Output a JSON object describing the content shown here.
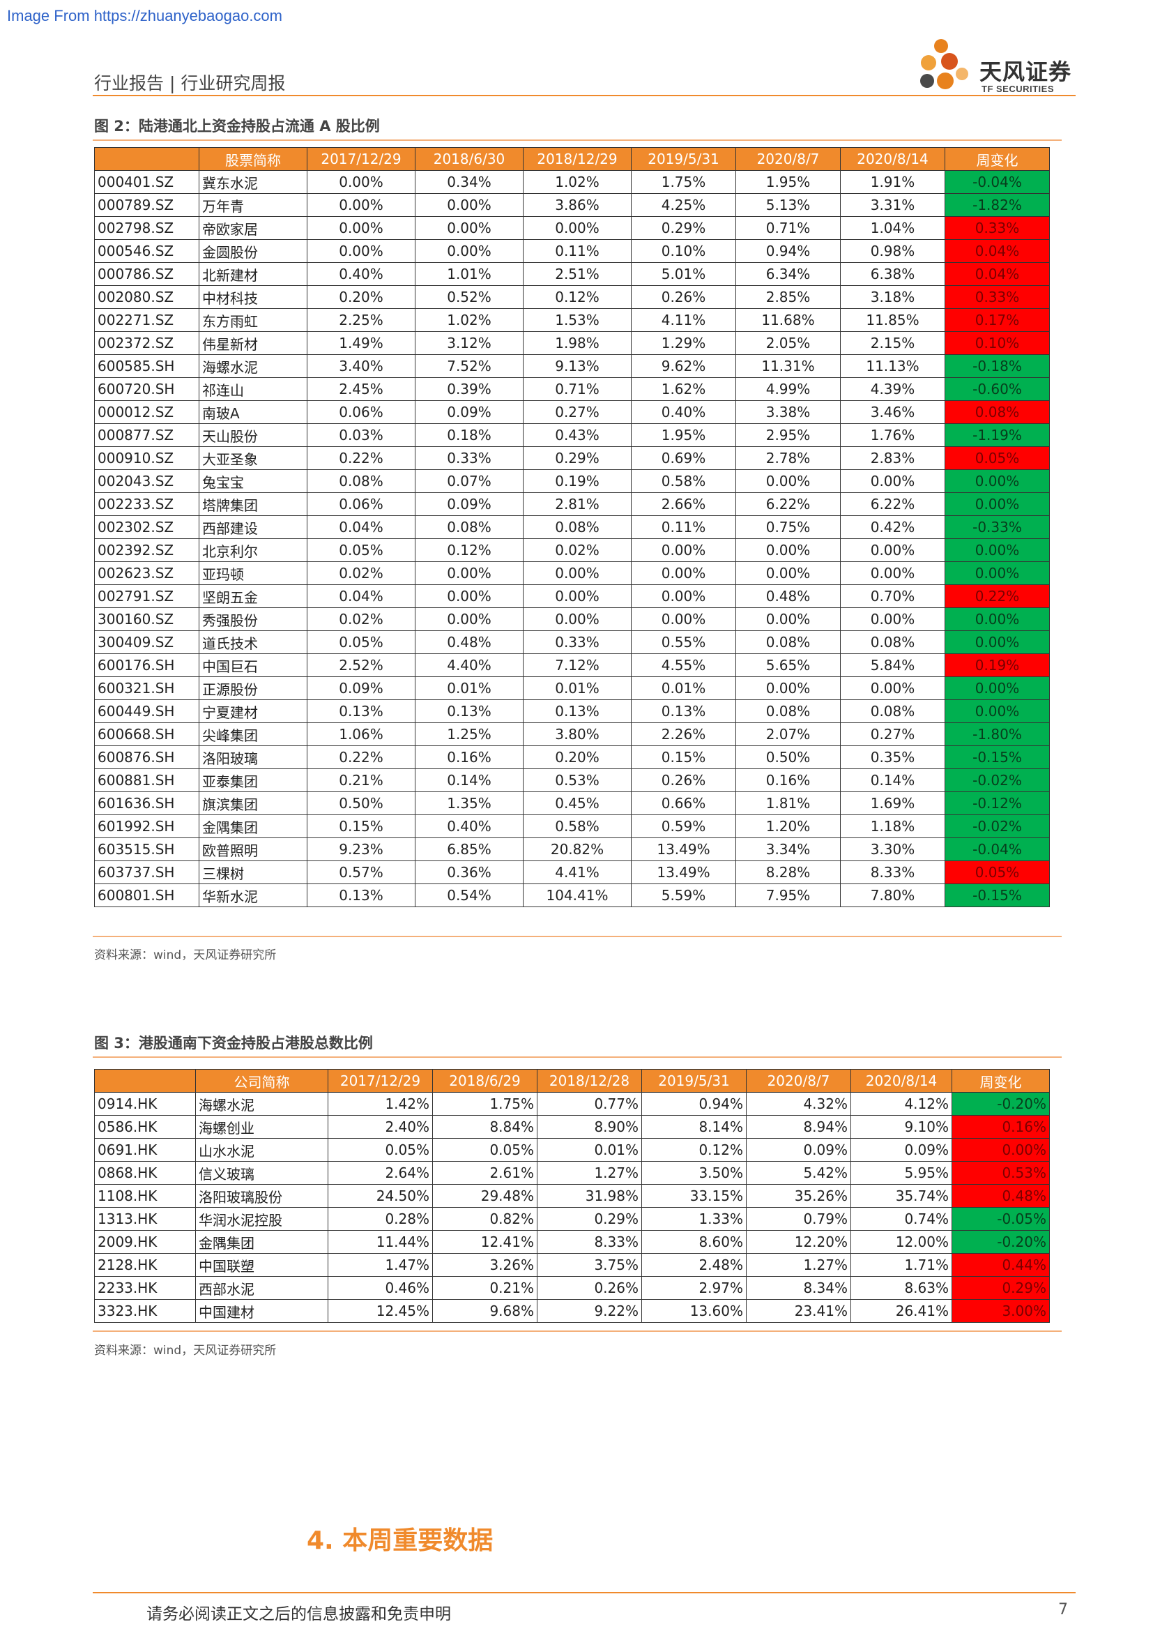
{
  "watermark": "Image From https://zhuanyebaogao.com",
  "header": {
    "title": "行业报告 | 行业研究周报"
  },
  "logo": {
    "name": "天风证券",
    "sub": "TF SECURITIES"
  },
  "colors": {
    "accent": "#f08a2c",
    "increase": "#ff0000",
    "decrease": "#00b050"
  },
  "figure2": {
    "title": "图 2：陆港通北上资金持股占流通 A 股比例",
    "columns": [
      "",
      "股票简称",
      "2017/12/29",
      "2018/6/30",
      "2018/12/29",
      "2019/5/31",
      "2020/8/7",
      "2020/8/14",
      "周变化"
    ],
    "rows": [
      [
        "000401.SZ",
        "冀东水泥",
        "0.00%",
        "0.34%",
        "1.02%",
        "1.75%",
        "1.95%",
        "1.91%",
        "-0.04%"
      ],
      [
        "000789.SZ",
        "万年青",
        "0.00%",
        "0.00%",
        "3.86%",
        "4.25%",
        "5.13%",
        "3.31%",
        "-1.82%"
      ],
      [
        "002798.SZ",
        "帝欧家居",
        "0.00%",
        "0.00%",
        "0.00%",
        "0.29%",
        "0.71%",
        "1.04%",
        "0.33%"
      ],
      [
        "000546.SZ",
        "金圆股份",
        "0.00%",
        "0.00%",
        "0.11%",
        "0.10%",
        "0.94%",
        "0.98%",
        "0.04%"
      ],
      [
        "000786.SZ",
        "北新建材",
        "0.40%",
        "1.01%",
        "2.51%",
        "5.01%",
        "6.34%",
        "6.38%",
        "0.04%"
      ],
      [
        "002080.SZ",
        "中材科技",
        "0.20%",
        "0.52%",
        "0.12%",
        "0.26%",
        "2.85%",
        "3.18%",
        "0.33%"
      ],
      [
        "002271.SZ",
        "东方雨虹",
        "2.25%",
        "1.02%",
        "1.53%",
        "4.11%",
        "11.68%",
        "11.85%",
        "0.17%"
      ],
      [
        "002372.SZ",
        "伟星新材",
        "1.49%",
        "3.12%",
        "1.98%",
        "1.29%",
        "2.05%",
        "2.15%",
        "0.10%"
      ],
      [
        "600585.SH",
        "海螺水泥",
        "3.40%",
        "7.52%",
        "9.13%",
        "9.62%",
        "11.31%",
        "11.13%",
        "-0.18%"
      ],
      [
        "600720.SH",
        "祁连山",
        "2.45%",
        "0.39%",
        "0.71%",
        "1.62%",
        "4.99%",
        "4.39%",
        "-0.60%"
      ],
      [
        "000012.SZ",
        "南玻A",
        "0.06%",
        "0.09%",
        "0.27%",
        "0.40%",
        "3.38%",
        "3.46%",
        "0.08%"
      ],
      [
        "000877.SZ",
        "天山股份",
        "0.03%",
        "0.18%",
        "0.43%",
        "1.95%",
        "2.95%",
        "1.76%",
        "-1.19%"
      ],
      [
        "000910.SZ",
        "大亚圣象",
        "0.22%",
        "0.33%",
        "0.29%",
        "0.69%",
        "2.78%",
        "2.83%",
        "0.05%"
      ],
      [
        "002043.SZ",
        "兔宝宝",
        "0.08%",
        "0.07%",
        "0.19%",
        "0.58%",
        "0.00%",
        "0.00%",
        "0.00%"
      ],
      [
        "002233.SZ",
        "塔牌集团",
        "0.06%",
        "0.09%",
        "2.81%",
        "2.66%",
        "6.22%",
        "6.22%",
        "0.00%"
      ],
      [
        "002302.SZ",
        "西部建设",
        "0.04%",
        "0.08%",
        "0.08%",
        "0.11%",
        "0.75%",
        "0.42%",
        "-0.33%"
      ],
      [
        "002392.SZ",
        "北京利尔",
        "0.05%",
        "0.12%",
        "0.02%",
        "0.00%",
        "0.00%",
        "0.00%",
        "0.00%"
      ],
      [
        "002623.SZ",
        "亚玛顿",
        "0.02%",
        "0.00%",
        "0.00%",
        "0.00%",
        "0.00%",
        "0.00%",
        "0.00%"
      ],
      [
        "002791.SZ",
        "坚朗五金",
        "0.04%",
        "0.00%",
        "0.00%",
        "0.00%",
        "0.48%",
        "0.70%",
        "0.22%"
      ],
      [
        "300160.SZ",
        "秀强股份",
        "0.02%",
        "0.00%",
        "0.00%",
        "0.00%",
        "0.00%",
        "0.00%",
        "0.00%"
      ],
      [
        "300409.SZ",
        "道氏技术",
        "0.05%",
        "0.48%",
        "0.33%",
        "0.55%",
        "0.08%",
        "0.08%",
        "0.00%"
      ],
      [
        "600176.SH",
        "中国巨石",
        "2.52%",
        "4.40%",
        "7.12%",
        "4.55%",
        "5.65%",
        "5.84%",
        "0.19%"
      ],
      [
        "600321.SH",
        "正源股份",
        "0.09%",
        "0.01%",
        "0.01%",
        "0.01%",
        "0.00%",
        "0.00%",
        "0.00%"
      ],
      [
        "600449.SH",
        "宁夏建材",
        "0.13%",
        "0.13%",
        "0.13%",
        "0.13%",
        "0.08%",
        "0.08%",
        "0.00%"
      ],
      [
        "600668.SH",
        "尖峰集团",
        "1.06%",
        "1.25%",
        "3.80%",
        "2.26%",
        "2.07%",
        "0.27%",
        "-1.80%"
      ],
      [
        "600876.SH",
        "洛阳玻璃",
        "0.22%",
        "0.16%",
        "0.20%",
        "0.15%",
        "0.50%",
        "0.35%",
        "-0.15%"
      ],
      [
        "600881.SH",
        "亚泰集团",
        "0.21%",
        "0.14%",
        "0.53%",
        "0.26%",
        "0.16%",
        "0.14%",
        "-0.02%"
      ],
      [
        "601636.SH",
        "旗滨集团",
        "0.50%",
        "1.35%",
        "0.45%",
        "0.66%",
        "1.81%",
        "1.69%",
        "-0.12%"
      ],
      [
        "601992.SH",
        "金隅集团",
        "0.15%",
        "0.40%",
        "0.58%",
        "0.59%",
        "1.20%",
        "1.18%",
        "-0.02%"
      ],
      [
        "603515.SH",
        "欧普照明",
        "9.23%",
        "6.85%",
        "20.82%",
        "13.49%",
        "3.34%",
        "3.30%",
        "-0.04%"
      ],
      [
        "603737.SH",
        "三棵树",
        "0.57%",
        "0.36%",
        "4.41%",
        "13.49%",
        "8.28%",
        "8.33%",
        "0.05%"
      ],
      [
        "600801.SH",
        "华新水泥",
        "0.13%",
        "0.54%",
        "104.41%",
        "5.59%",
        "7.95%",
        "7.80%",
        "-0.15%"
      ]
    ],
    "change_colors": [
      "down",
      "down",
      "up",
      "up",
      "up",
      "up",
      "up",
      "up",
      "down",
      "down",
      "up",
      "down",
      "up",
      "down",
      "down",
      "down",
      "down",
      "down",
      "up",
      "down",
      "down",
      "up",
      "down",
      "down",
      "down",
      "down",
      "down",
      "down",
      "down",
      "down",
      "up",
      "down"
    ],
    "source": "资料来源：wind，天风证券研究所"
  },
  "figure3": {
    "title": "图 3：港股通南下资金持股占港股总数比例",
    "columns": [
      "",
      "公司简称",
      "2017/12/29",
      "2018/6/29",
      "2018/12/28",
      "2019/5/31",
      "2020/8/7",
      "2020/8/14",
      "周变化"
    ],
    "rows": [
      [
        "0914.HK",
        "海螺水泥",
        "1.42%",
        "1.75%",
        "0.77%",
        "0.94%",
        "4.32%",
        "4.12%",
        "-0.20%"
      ],
      [
        "0586.HK",
        "海螺创业",
        "2.40%",
        "8.84%",
        "8.90%",
        "8.14%",
        "8.94%",
        "9.10%",
        "0.16%"
      ],
      [
        "0691.HK",
        "山水水泥",
        "0.05%",
        "0.05%",
        "0.01%",
        "0.12%",
        "0.09%",
        "0.09%",
        "0.00%"
      ],
      [
        "0868.HK",
        "信义玻璃",
        "2.64%",
        "2.61%",
        "1.27%",
        "3.50%",
        "5.42%",
        "5.95%",
        "0.53%"
      ],
      [
        "1108.HK",
        "洛阳玻璃股份",
        "24.50%",
        "29.48%",
        "31.98%",
        "33.15%",
        "35.26%",
        "35.74%",
        "0.48%"
      ],
      [
        "1313.HK",
        "华润水泥控股",
        "0.28%",
        "0.82%",
        "0.29%",
        "1.33%",
        "0.79%",
        "0.74%",
        "-0.05%"
      ],
      [
        "2009.HK",
        "金隅集团",
        "11.44%",
        "12.41%",
        "8.33%",
        "8.60%",
        "12.20%",
        "12.00%",
        "-0.20%"
      ],
      [
        "2128.HK",
        "中国联塑",
        "1.47%",
        "3.26%",
        "3.75%",
        "2.48%",
        "1.27%",
        "1.71%",
        "0.44%"
      ],
      [
        "2233.HK",
        "西部水泥",
        "0.46%",
        "0.21%",
        "0.26%",
        "2.97%",
        "8.34%",
        "8.63%",
        "0.29%"
      ],
      [
        "3323.HK",
        "中国建材",
        "12.45%",
        "9.68%",
        "9.22%",
        "13.60%",
        "23.41%",
        "26.41%",
        "3.00%"
      ]
    ],
    "change_colors": [
      "down",
      "up",
      "up",
      "up",
      "up",
      "down",
      "down",
      "up",
      "up",
      "up"
    ],
    "source": "资料来源：wind，天风证券研究所"
  },
  "section": {
    "heading": "4. 本周重要数据"
  },
  "footer": {
    "disclaimer": "请务必阅读正文之后的信息披露和免责申明",
    "page": "7"
  }
}
